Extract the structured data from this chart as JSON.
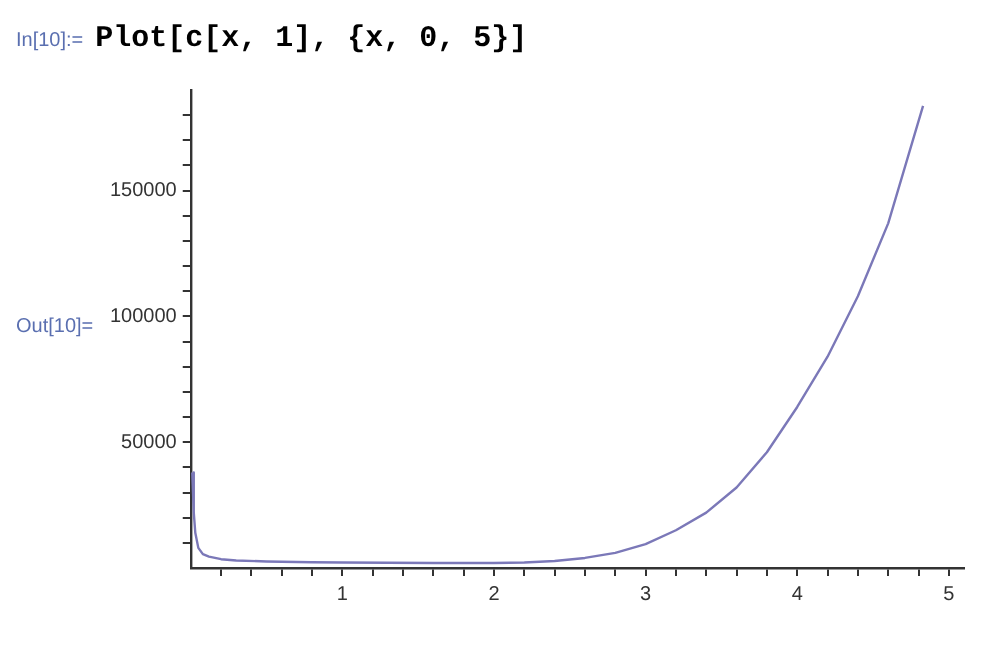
{
  "chart_data": {
    "type": "line",
    "annotations": [
      "In[10]:= Plot[c[x, 1], {x, 0, 5}]",
      "Out[10]="
    ],
    "x": [
      0.01,
      0.02,
      0.03,
      0.05,
      0.08,
      0.12,
      0.2,
      0.3,
      0.5,
      0.8,
      1,
      1.3,
      1.6,
      2,
      2.2,
      2.4,
      2.6,
      2.8,
      3,
      3.2,
      3.4,
      3.6,
      3.8,
      4,
      4.2,
      4.4,
      4.6,
      4.83
    ],
    "series": [
      {
        "color": "#7b78b8",
        "values": [
          38000,
          22000,
          14000,
          8000,
          5500,
          4500,
          3500,
          3000,
          2600,
          2300,
          2200,
          2100,
          2000,
          2000,
          2200,
          2800,
          4000,
          6000,
          9500,
          15000,
          22000,
          32000,
          46000,
          64000,
          84000,
          108000,
          137000,
          183700
        ]
      }
    ],
    "xlim": [
      0,
      5.1
    ],
    "ylim": [
      0,
      190000
    ],
    "xticks": [
      {
        "value": 0.2,
        "label": null
      },
      {
        "value": 0.4,
        "label": null
      },
      {
        "value": 0.6,
        "label": null
      },
      {
        "value": 0.8,
        "label": null
      },
      1,
      {
        "value": 1.2,
        "label": null
      },
      {
        "value": 1.4,
        "label": null
      },
      {
        "value": 1.6,
        "label": null
      },
      {
        "value": 1.8,
        "label": null
      },
      2,
      {
        "value": 2.2,
        "label": null
      },
      {
        "value": 2.4,
        "label": null
      },
      {
        "value": 2.6,
        "label": null
      },
      {
        "value": 2.8,
        "label": null
      },
      3,
      {
        "value": 3.2,
        "label": null
      },
      {
        "value": 3.4,
        "label": null
      },
      {
        "value": 3.6,
        "label": null
      },
      {
        "value": 3.8,
        "label": null
      },
      4,
      {
        "value": 4.2,
        "label": null
      },
      {
        "value": 4.4,
        "label": null
      },
      {
        "value": 4.6,
        "label": null
      },
      {
        "value": 4.8,
        "label": null
      },
      5
    ],
    "yticks": [
      {
        "value": 10000,
        "label": null
      },
      {
        "value": 20000,
        "label": null
      },
      {
        "value": 30000,
        "label": null
      },
      {
        "value": 40000,
        "label": null
      },
      50000,
      {
        "value": 60000,
        "label": null
      },
      {
        "value": 70000,
        "label": null
      },
      {
        "value": 80000,
        "label": null
      },
      {
        "value": 90000,
        "label": null
      },
      100000,
      {
        "value": 110000,
        "label": null
      },
      {
        "value": 120000,
        "label": null
      },
      {
        "value": 130000,
        "label": null
      },
      {
        "value": 140000,
        "label": null
      },
      150000,
      {
        "value": 160000,
        "label": null
      },
      {
        "value": 170000,
        "label": null
      },
      {
        "value": 180000,
        "label": null
      }
    ],
    "grid": false,
    "marker": "none",
    "line_style": "solid",
    "legend": false
  }
}
